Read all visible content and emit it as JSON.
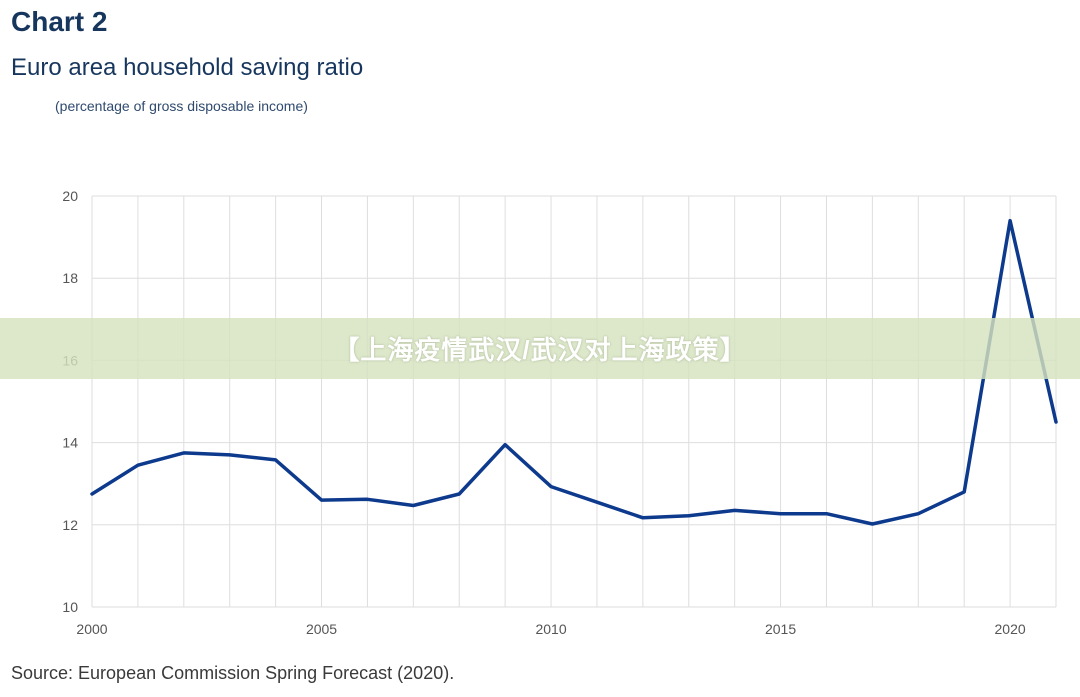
{
  "header": {
    "title": "Chart 2",
    "subtitle": "Euro area household saving ratio",
    "unit_note": "(percentage of gross disposable income)"
  },
  "footer": {
    "source": "Source: European Commission Spring Forecast (2020)."
  },
  "overlay": {
    "banner_text": "【上海疫情武汉/武汉对上海政策】"
  },
  "colors": {
    "line": "#0d3a8c",
    "grid": "#dedede",
    "title": "#17365d"
  },
  "chart_data": {
    "type": "line",
    "title": "Euro area household saving ratio",
    "subtitle": "(percentage of gross disposable income)",
    "xlabel": "",
    "ylabel": "",
    "xlim": [
      2000,
      2021
    ],
    "ylim": [
      10,
      20
    ],
    "x_ticks": [
      2000,
      2005,
      2010,
      2015,
      2020
    ],
    "y_ticks": [
      10,
      12,
      14,
      16,
      18,
      20
    ],
    "grid": true,
    "legend": "none",
    "series": [
      {
        "x": [
          2000,
          2001,
          2002,
          2003,
          2004,
          2005,
          2006,
          2007,
          2008,
          2009,
          2010,
          2011,
          2012,
          2013,
          2014,
          2015,
          2016,
          2017,
          2018,
          2019,
          2020,
          2021
        ],
        "values": [
          12.75,
          13.45,
          13.75,
          13.7,
          13.58,
          12.6,
          12.62,
          12.47,
          12.75,
          13.95,
          12.93,
          12.55,
          12.17,
          12.22,
          12.35,
          12.27,
          12.27,
          12.02,
          12.27,
          12.8,
          19.4,
          14.5
        ]
      }
    ]
  }
}
